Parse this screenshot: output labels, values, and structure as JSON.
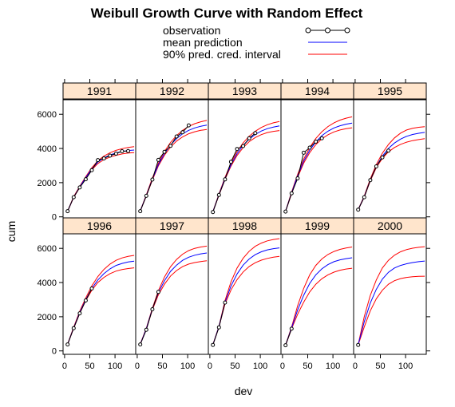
{
  "chart_data": {
    "type": "line",
    "title": "Weibull Growth Curve with Random Effect",
    "xlabel": "dev",
    "ylabel": "cum",
    "xlim": [
      -3,
      141
    ],
    "ylim": [
      -200,
      6850
    ],
    "xticks": [
      0,
      50,
      100
    ],
    "yticks": [
      0,
      2000,
      4000,
      6000
    ],
    "x_tick_labels": [
      "0",
      "50",
      "100"
    ],
    "y_tick_labels": [
      "0",
      "2000",
      "4000",
      "6000"
    ],
    "legend": {
      "placement": "top",
      "entries": [
        {
          "label": "observation",
          "style": "line-points",
          "color": "#000000"
        },
        {
          "label": "mean prediction",
          "style": "line",
          "color": "#0000ff"
        },
        {
          "label": "90% pred. cred. interval",
          "style": "line",
          "color": "#ff0000"
        }
      ]
    },
    "colors": {
      "observation": "#000000",
      "mean": "#0000ff",
      "interval": "#ff0000",
      "strip": "#ffe5cc"
    },
    "grid": false,
    "layout": {
      "columns": 5,
      "rows": 2
    },
    "curve_x": [
      6,
      18,
      30,
      42,
      54,
      66,
      78,
      90,
      102,
      114,
      126,
      138
    ],
    "panels": [
      {
        "label": "1991",
        "observations": [
          {
            "x": 6,
            "y": 330
          },
          {
            "x": 18,
            "y": 1150
          },
          {
            "x": 30,
            "y": 1720
          },
          {
            "x": 42,
            "y": 2200
          },
          {
            "x": 54,
            "y": 2730
          },
          {
            "x": 66,
            "y": 3320
          },
          {
            "x": 78,
            "y": 3420
          },
          {
            "x": 90,
            "y": 3580
          },
          {
            "x": 102,
            "y": 3700
          },
          {
            "x": 114,
            "y": 3840
          },
          {
            "x": 126,
            "y": 3850
          }
        ],
        "mean": [
          330,
          1150,
          1750,
          2300,
          2800,
          3200,
          3450,
          3620,
          3740,
          3820,
          3880,
          3910
        ],
        "lower": [
          320,
          1130,
          1720,
          2260,
          2750,
          3120,
          3350,
          3500,
          3600,
          3680,
          3730,
          3760
        ],
        "upper": [
          340,
          1180,
          1790,
          2350,
          2870,
          3280,
          3560,
          3750,
          3890,
          3990,
          4060,
          4110
        ]
      },
      {
        "label": "1992",
        "observations": [
          {
            "x": 6,
            "y": 330
          },
          {
            "x": 18,
            "y": 1230
          },
          {
            "x": 30,
            "y": 2180
          },
          {
            "x": 42,
            "y": 3330
          },
          {
            "x": 54,
            "y": 3800
          },
          {
            "x": 66,
            "y": 4150
          },
          {
            "x": 78,
            "y": 4700
          },
          {
            "x": 90,
            "y": 4950
          },
          {
            "x": 102,
            "y": 5350
          }
        ],
        "mean": [
          340,
          1250,
          2200,
          3050,
          3700,
          4200,
          4580,
          4860,
          5060,
          5200,
          5300,
          5370
        ],
        "lower": [
          330,
          1220,
          2150,
          2980,
          3600,
          4080,
          4430,
          4680,
          4860,
          4980,
          5060,
          5110
        ],
        "upper": [
          350,
          1290,
          2270,
          3140,
          3820,
          4350,
          4760,
          5060,
          5290,
          5450,
          5560,
          5640
        ]
      },
      {
        "label": "1993",
        "observations": [
          {
            "x": 6,
            "y": 280
          },
          {
            "x": 18,
            "y": 1280
          },
          {
            "x": 30,
            "y": 2190
          },
          {
            "x": 42,
            "y": 3220
          },
          {
            "x": 54,
            "y": 3970
          },
          {
            "x": 66,
            "y": 4140
          },
          {
            "x": 78,
            "y": 4600
          },
          {
            "x": 90,
            "y": 4900
          }
        ],
        "mean": [
          300,
          1300,
          2250,
          3050,
          3700,
          4180,
          4550,
          4820,
          5020,
          5160,
          5250,
          5320
        ],
        "lower": [
          290,
          1260,
          2190,
          2970,
          3590,
          4050,
          4400,
          4640,
          4810,
          4930,
          5000,
          5050
        ],
        "upper": [
          310,
          1340,
          2310,
          3150,
          3820,
          4330,
          4720,
          5010,
          5230,
          5390,
          5500,
          5580
        ]
      },
      {
        "label": "1994",
        "observations": [
          {
            "x": 6,
            "y": 310
          },
          {
            "x": 18,
            "y": 1380
          },
          {
            "x": 30,
            "y": 2250
          },
          {
            "x": 42,
            "y": 3750
          },
          {
            "x": 54,
            "y": 4050
          },
          {
            "x": 66,
            "y": 4400
          },
          {
            "x": 78,
            "y": 4600
          }
        ],
        "mean": [
          320,
          1400,
          2400,
          3250,
          3900,
          4380,
          4750,
          5010,
          5200,
          5330,
          5420,
          5480
        ],
        "lower": [
          310,
          1350,
          2320,
          3140,
          3760,
          4220,
          4560,
          4800,
          4970,
          5080,
          5160,
          5210
        ],
        "upper": [
          330,
          1450,
          2490,
          3370,
          4060,
          4580,
          4980,
          5280,
          5500,
          5660,
          5770,
          5850
        ]
      },
      {
        "label": "1995",
        "observations": [
          {
            "x": 6,
            "y": 420
          },
          {
            "x": 18,
            "y": 1150
          },
          {
            "x": 30,
            "y": 2150
          },
          {
            "x": 42,
            "y": 2950
          },
          {
            "x": 54,
            "y": 3480
          },
          {
            "x": 66,
            "y": 3870
          }
        ],
        "mean": [
          420,
          1180,
          2150,
          2950,
          3550,
          4000,
          4320,
          4550,
          4710,
          4820,
          4890,
          4940
        ],
        "lower": [
          410,
          1150,
          2100,
          2880,
          3420,
          3800,
          4060,
          4240,
          4370,
          4460,
          4520,
          4570
        ],
        "upper": [
          430,
          1220,
          2220,
          3060,
          3720,
          4230,
          4620,
          4900,
          5080,
          5180,
          5240,
          5270
        ]
      },
      {
        "label": "1996",
        "observations": [
          {
            "x": 6,
            "y": 380
          },
          {
            "x": 18,
            "y": 1330
          },
          {
            "x": 30,
            "y": 2200
          },
          {
            "x": 42,
            "y": 2950
          },
          {
            "x": 54,
            "y": 3650
          }
        ],
        "mean": [
          390,
          1350,
          2250,
          3000,
          3650,
          4150,
          4520,
          4800,
          5000,
          5120,
          5200,
          5250
        ],
        "lower": [
          380,
          1320,
          2200,
          2940,
          3550,
          4000,
          4300,
          4520,
          4670,
          4760,
          4820,
          4860
        ],
        "upper": [
          400,
          1390,
          2320,
          3100,
          3800,
          4350,
          4770,
          5080,
          5300,
          5440,
          5530,
          5590
        ]
      },
      {
        "label": "1997",
        "observations": [
          {
            "x": 6,
            "y": 380
          },
          {
            "x": 18,
            "y": 1240
          },
          {
            "x": 30,
            "y": 2440
          },
          {
            "x": 42,
            "y": 3450
          }
        ],
        "mean": [
          390,
          1300,
          2450,
          3400,
          4100,
          4650,
          5020,
          5300,
          5480,
          5600,
          5680,
          5730
        ],
        "lower": [
          380,
          1270,
          2400,
          3280,
          3900,
          4380,
          4700,
          4930,
          5080,
          5170,
          5230,
          5270
        ],
        "upper": [
          400,
          1330,
          2500,
          3520,
          4320,
          4920,
          5350,
          5660,
          5870,
          6000,
          6080,
          6130
        ]
      },
      {
        "label": "1998",
        "observations": [
          {
            "x": 6,
            "y": 350
          },
          {
            "x": 18,
            "y": 1380
          },
          {
            "x": 30,
            "y": 2830
          }
        ],
        "mean": [
          360,
          1420,
          2850,
          3800,
          4500,
          5020,
          5380,
          5630,
          5800,
          5910,
          5980,
          6030
        ],
        "lower": [
          350,
          1390,
          2750,
          3570,
          4170,
          4620,
          4940,
          5160,
          5310,
          5410,
          5480,
          5530
        ],
        "upper": [
          370,
          1450,
          2950,
          4050,
          4850,
          5420,
          5830,
          6120,
          6310,
          6440,
          6520,
          6570
        ]
      },
      {
        "label": "1999",
        "observations": [
          {
            "x": 6,
            "y": 330
          },
          {
            "x": 18,
            "y": 1300
          }
        ],
        "mean": [
          330,
          1350,
          2400,
          3250,
          3950,
          4450,
          4800,
          5050,
          5220,
          5330,
          5400,
          5450
        ],
        "lower": [
          320,
          1300,
          2150,
          2850,
          3450,
          3900,
          4220,
          4450,
          4610,
          4720,
          4790,
          4840
        ],
        "upper": [
          340,
          1400,
          2650,
          3650,
          4450,
          5000,
          5380,
          5640,
          5820,
          5940,
          6020,
          6080
        ]
      },
      {
        "label": "2000",
        "observations": [
          {
            "x": 6,
            "y": 350
          }
        ],
        "mean": [
          360,
          1700,
          2800,
          3600,
          4200,
          4600,
          4850,
          5000,
          5100,
          5170,
          5220,
          5260
        ],
        "lower": [
          350,
          1400,
          2350,
          3050,
          3550,
          3900,
          4110,
          4230,
          4300,
          4340,
          4360,
          4370
        ],
        "upper": [
          370,
          2000,
          3250,
          4150,
          4850,
          5300,
          5600,
          5800,
          5930,
          6010,
          6060,
          6100
        ]
      }
    ]
  }
}
